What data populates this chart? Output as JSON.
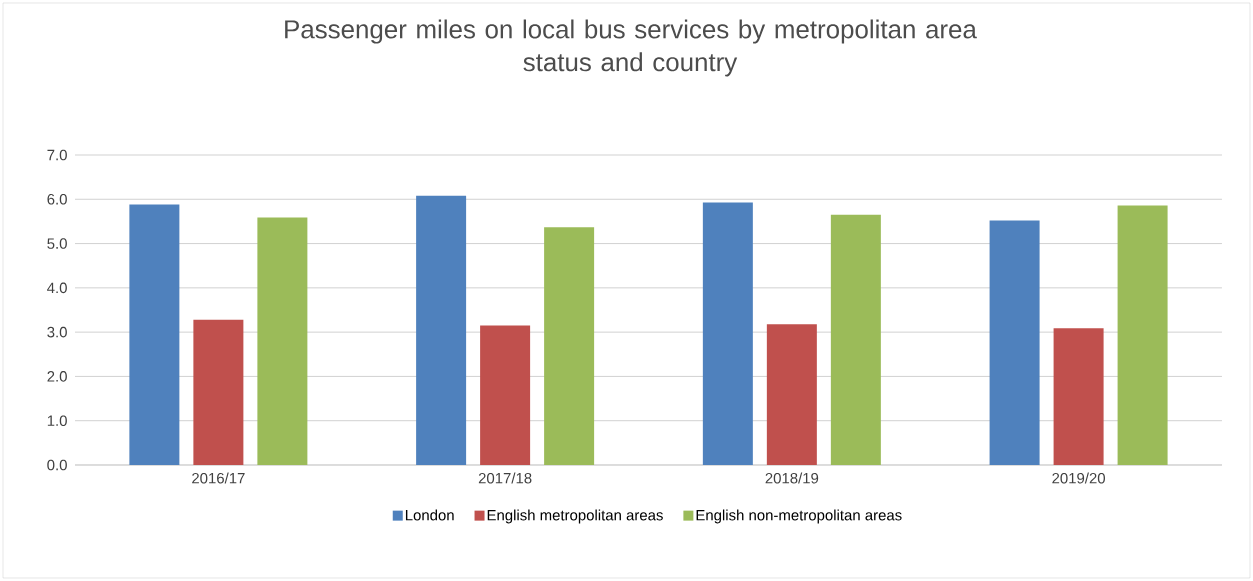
{
  "chart_data": {
    "type": "bar",
    "title": "Passenger miles on local bus services by metropolitan area\nstatus and country",
    "categories": [
      "2016/17",
      "2017/18",
      "2018/19",
      "2019/20"
    ],
    "series": [
      {
        "name": "London",
        "color": "#4f81bd",
        "values": [
          5.88,
          6.08,
          5.93,
          5.52
        ]
      },
      {
        "name": "English metropolitan areas",
        "color": "#c0504d",
        "values": [
          3.28,
          3.15,
          3.18,
          3.09
        ]
      },
      {
        "name": "English non-metropolitan areas",
        "color": "#9bbb59",
        "values": [
          5.59,
          5.37,
          5.65,
          5.86
        ]
      }
    ],
    "ylim": [
      0,
      7
    ],
    "yticks": [
      {
        "value": 0,
        "label": "0.0"
      },
      {
        "value": 1,
        "label": "1.0"
      },
      {
        "value": 2,
        "label": "2.0"
      },
      {
        "value": 3,
        "label": "3.0"
      },
      {
        "value": 4,
        "label": "4.0"
      },
      {
        "value": 5,
        "label": "5.0"
      },
      {
        "value": 6,
        "label": "6.0"
      },
      {
        "value": 7,
        "label": "7.0"
      }
    ],
    "grid": "y",
    "legend": "bottom"
  }
}
